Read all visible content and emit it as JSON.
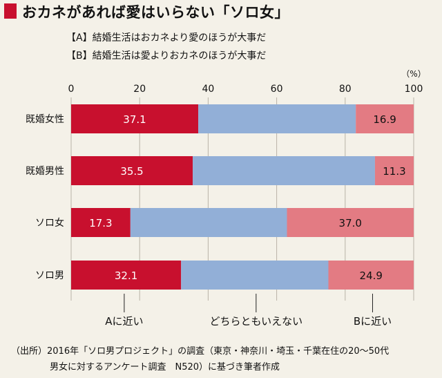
{
  "title": "おカネがあれば愛はいらない「ソロ女」",
  "legend": [
    "【A】結婚生活はおカネより愛のほうが大事だ",
    "【B】結婚生活は愛よりおカネのほうが大事だ"
  ],
  "colors": {
    "a": "#c8102e",
    "middle": "#92afd7",
    "b": "#e37b83",
    "accent": "#c8102e"
  },
  "chart_data": {
    "type": "bar",
    "orientation": "horizontal",
    "stacked": true,
    "unit_label": "（%）",
    "xlim": [
      0,
      100
    ],
    "x_ticks": [
      "0",
      "20",
      "40",
      "60",
      "80",
      "100"
    ],
    "grid": true,
    "categories": [
      "既婚女性",
      "既婚男性",
      "ソロ女",
      "ソロ男"
    ],
    "series": [
      {
        "name": "Aに近い",
        "values": [
          37.1,
          35.5,
          17.3,
          32.1
        ],
        "labels": [
          "37.1",
          "35.5",
          "17.3",
          "32.1"
        ]
      },
      {
        "name": "どちらともいえない",
        "values": [
          46.0,
          53.2,
          45.7,
          43.0
        ],
        "labels": [
          "",
          "",
          "",
          ""
        ]
      },
      {
        "name": "Bに近い",
        "values": [
          16.9,
          11.3,
          37.0,
          24.9
        ],
        "labels": [
          "16.9",
          "11.3",
          "37.0",
          "24.9"
        ]
      }
    ],
    "bottom_labels": [
      "Aに近い",
      "どちらともいえない",
      "Bに近い"
    ]
  },
  "source": [
    "（出所）2016年「ソロ男プロジェクト」の調査（東京・神奈川・埼玉・千葉在住の20～50代",
    "男女に対するアンケート調査　N520）に基づき筆者作成"
  ]
}
